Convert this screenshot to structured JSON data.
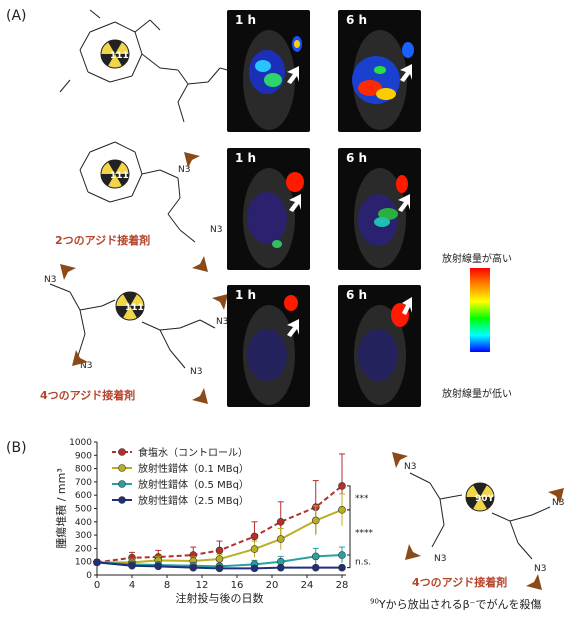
{
  "panels": {
    "a_label": "(A)",
    "b_label": "(B)"
  },
  "panel_a": {
    "rows": [
      {
        "label": "",
        "time_left": "1 h",
        "time_right": "6 h",
        "isotope": "111In"
      },
      {
        "label": "2つのアジド接着剤",
        "time_left": "1 h",
        "time_right": "6 h",
        "isotope": "111In"
      },
      {
        "label": "4つのアジド接着剤",
        "time_left": "1 h",
        "time_right": "6 h",
        "isotope": "111In"
      }
    ],
    "colorbar": {
      "high_label": "放射線量が高い",
      "low_label": "放射線量が低い",
      "colors": [
        "#ff0000",
        "#ff8800",
        "#ffff00",
        "#00ff00",
        "#00ffff",
        "#0000ff"
      ]
    },
    "azide_group": "N3"
  },
  "panel_b": {
    "molecule_label": "4つのアジド接着剤",
    "isotope": "90Y",
    "caption_sup": "90",
    "caption": "Yから放出されるβ⁻でがんを殺傷",
    "azide_arrow_color": "#8b4a18"
  },
  "chart_data": {
    "type": "line",
    "xlabel": "注射投与後の日数",
    "ylabel": "腫瘍堆積 / mm³",
    "xlim": [
      0,
      28
    ],
    "ylim": [
      0,
      1000
    ],
    "xticks": [
      0,
      4,
      8,
      12,
      16,
      20,
      24,
      28
    ],
    "yticks": [
      0,
      100,
      200,
      300,
      400,
      500,
      600,
      700,
      800,
      900,
      1000
    ],
    "grid": false,
    "legend_position": "top-left",
    "series": [
      {
        "name": "食塩水（コントロール）",
        "color": "#b5302a",
        "dashed": true,
        "x": [
          0,
          4,
          7,
          11,
          14,
          18,
          21,
          25,
          28
        ],
        "y": [
          95,
          130,
          135,
          150,
          185,
          290,
          400,
          510,
          670
        ],
        "err": [
          20,
          40,
          50,
          60,
          70,
          110,
          150,
          200,
          240
        ]
      },
      {
        "name": "放射性錯体（0.1 MBq）",
        "color": "#b8b022",
        "dashed": false,
        "x": [
          0,
          4,
          7,
          11,
          14,
          18,
          21,
          25,
          28
        ],
        "y": [
          95,
          95,
          110,
          105,
          120,
          195,
          270,
          410,
          490
        ],
        "err": [
          15,
          25,
          30,
          30,
          35,
          60,
          80,
          110,
          120
        ]
      },
      {
        "name": "放射性錯体（0.5 MBq）",
        "color": "#2aa1a1",
        "dashed": false,
        "x": [
          0,
          4,
          7,
          11,
          14,
          18,
          21,
          25,
          28
        ],
        "y": [
          95,
          80,
          75,
          70,
          65,
          80,
          100,
          140,
          150
        ],
        "err": [
          15,
          20,
          20,
          20,
          20,
          30,
          40,
          60,
          60
        ]
      },
      {
        "name": "放射性錯体（2.5 MBq）",
        "color": "#1f2f7a",
        "dashed": false,
        "x": [
          0,
          4,
          7,
          11,
          14,
          18,
          21,
          25,
          28
        ],
        "y": [
          95,
          70,
          65,
          55,
          50,
          50,
          55,
          55,
          55
        ],
        "err": [
          15,
          15,
          15,
          15,
          15,
          15,
          15,
          15,
          15
        ]
      }
    ],
    "significance": [
      "***",
      "****",
      "n.s."
    ]
  }
}
